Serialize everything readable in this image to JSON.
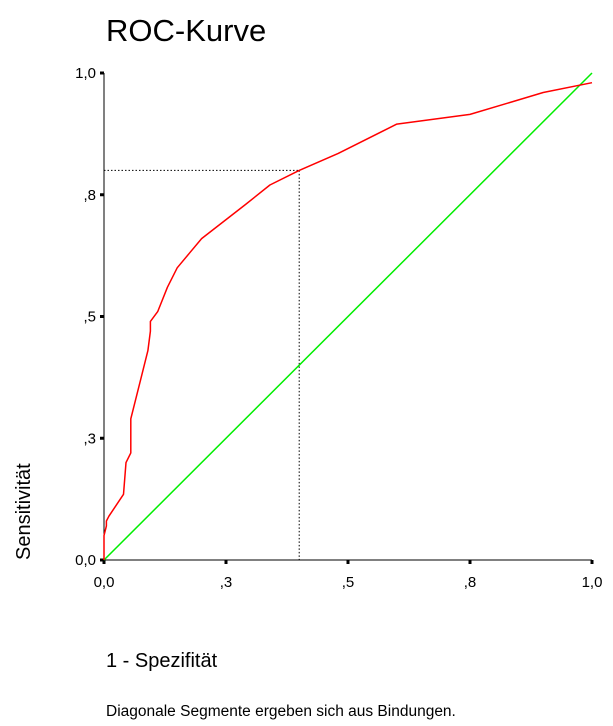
{
  "chart_data": {
    "type": "line",
    "title": "ROC-Kurve",
    "xlabel": "1 - Spezifität",
    "ylabel": "Sensitivität",
    "xlim": [
      0,
      1
    ],
    "ylim": [
      0,
      1
    ],
    "x_ticks": [
      {
        "value": 0.0,
        "label": "0,0"
      },
      {
        "value": 0.25,
        "label": ",3"
      },
      {
        "value": 0.5,
        "label": ",5"
      },
      {
        "value": 0.75,
        "label": ",8"
      },
      {
        "value": 1.0,
        "label": "1,0"
      }
    ],
    "y_ticks": [
      {
        "value": 0.0,
        "label": "0,0"
      },
      {
        "value": 0.25,
        "label": ",3"
      },
      {
        "value": 0.5,
        "label": ",5"
      },
      {
        "value": 0.75,
        "label": ",8"
      },
      {
        "value": 1.0,
        "label": "1,0"
      }
    ],
    "series": [
      {
        "role": "roc-curve",
        "color": "#ff0000",
        "x": [
          0.0,
          0.0,
          0.005,
          0.005,
          0.01,
          0.04,
          0.045,
          0.055,
          0.055,
          0.065,
          0.075,
          0.09,
          0.095,
          0.095,
          0.11,
          0.13,
          0.15,
          0.175,
          0.2,
          0.29,
          0.34,
          0.4,
          0.48,
          0.6,
          0.75,
          0.9,
          1.0
        ],
        "y": [
          0.0,
          0.05,
          0.07,
          0.08,
          0.09,
          0.135,
          0.2,
          0.22,
          0.29,
          0.33,
          0.37,
          0.43,
          0.47,
          0.49,
          0.51,
          0.56,
          0.6,
          0.63,
          0.66,
          0.73,
          0.77,
          0.8,
          0.835,
          0.895,
          0.915,
          0.96,
          0.98
        ]
      },
      {
        "role": "reference-line",
        "color": "#00ee00",
        "x": [
          0.0,
          1.0
        ],
        "y": [
          0.0,
          1.0
        ]
      }
    ],
    "reference_point": {
      "x": 0.4,
      "y": 0.8,
      "style": "dotted",
      "color": "#000000"
    },
    "grid": false,
    "legend": "none",
    "note": "Diagonale Segmente ergeben sich aus Bindungen."
  }
}
